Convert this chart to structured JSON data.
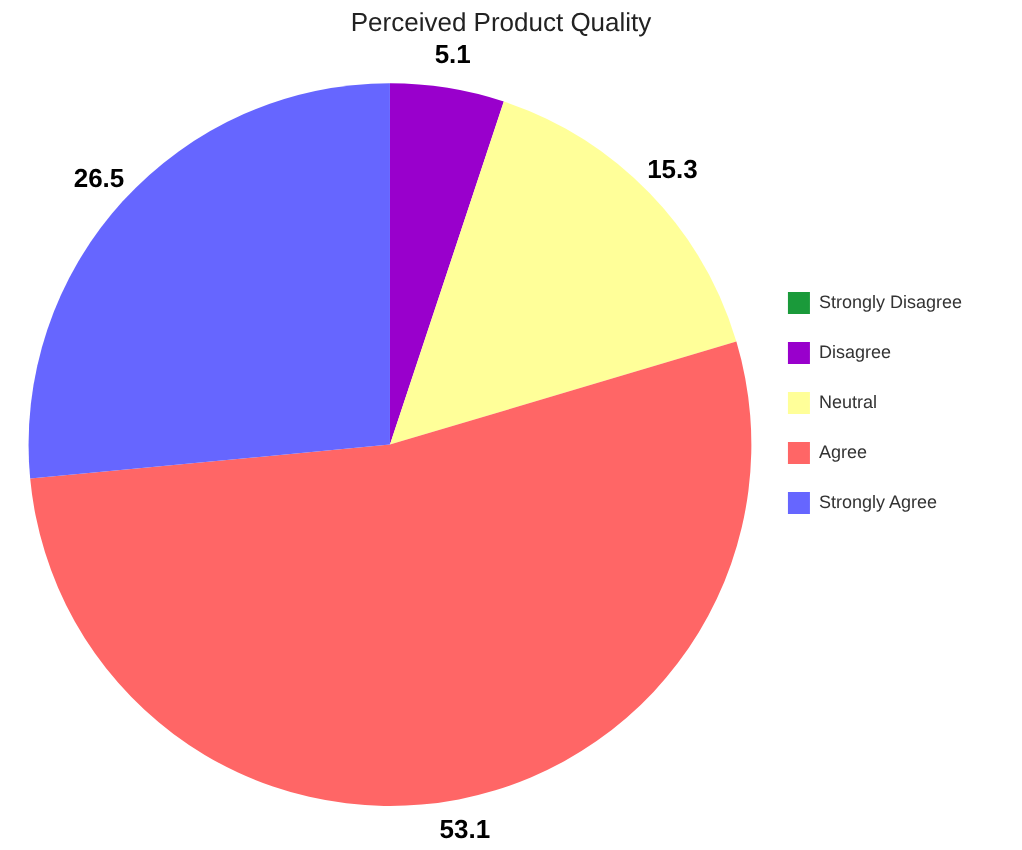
{
  "chart_data": {
    "type": "pie",
    "title": "Perceived Product Quality",
    "categories": [
      "Strongly Disagree",
      "Disagree",
      "Neutral",
      "Agree",
      "Strongly Agree"
    ],
    "values": [
      0,
      5.1,
      15.3,
      53.1,
      26.5
    ],
    "colors": [
      "#1a9a3a",
      "#9900cc",
      "#ffff99",
      "#ff6666",
      "#6666ff"
    ],
    "value_labels": [
      null,
      "5.1",
      "15.3",
      "53.1",
      "26.5"
    ],
    "legend": "right"
  }
}
